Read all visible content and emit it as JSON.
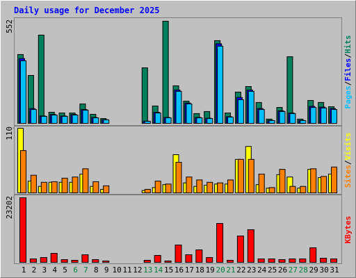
{
  "title": "Daily usage for December 2025",
  "separator": "/",
  "chart_data": [
    {
      "type": "bar",
      "ylim": [
        0,
        552
      ],
      "yticks": [
        552
      ],
      "series": [
        {
          "name": "Hits",
          "color": "#00805c",
          "values": [
            372,
            259,
            477,
            60,
            56,
            56,
            105,
            49,
            26,
            0,
            0,
            0,
            300,
            94,
            552,
            203,
            120,
            53,
            64,
            447,
            56,
            169,
            199,
            113,
            23,
            86,
            360,
            23,
            124,
            113,
            90
          ]
        },
        {
          "name": "Files",
          "color": "#0000ff",
          "values": [
            350,
            80,
            40,
            48,
            40,
            48,
            75,
            32,
            20,
            0,
            0,
            0,
            12,
            60,
            32,
            180,
            110,
            32,
            28,
            430,
            36,
            140,
            180,
            80,
            16,
            68,
            56,
            16,
            92,
            88,
            80
          ]
        },
        {
          "name": "Pages",
          "color": "#00c0ff",
          "values": [
            338,
            75,
            38,
            45,
            38,
            45,
            71,
            30,
            19,
            0,
            0,
            0,
            11,
            56,
            30,
            173,
            105,
            30,
            26,
            417,
            34,
            128,
            173,
            75,
            15,
            64,
            53,
            15,
            86,
            83,
            75
          ]
        }
      ]
    },
    {
      "type": "bar",
      "ylim": [
        0,
        110
      ],
      "yticks": [
        110
      ],
      "series": [
        {
          "name": "Visits",
          "color": "#ffff00",
          "values": [
            110,
            20,
            11,
            18,
            18,
            18,
            32,
            11,
            6,
            0,
            0,
            0,
            4,
            9,
            14,
            65,
            17,
            11,
            13,
            15,
            15,
            57,
            79,
            14,
            8,
            31,
            27,
            8,
            40,
            26,
            32
          ]
        },
        {
          "name": "Sites",
          "color": "#ff8000",
          "values": [
            72,
            30,
            18,
            19,
            25,
            27,
            41,
            19,
            12,
            0,
            0,
            0,
            6,
            20,
            15,
            52,
            27,
            22,
            18,
            17,
            22,
            57,
            57,
            32,
            9,
            40,
            11,
            11,
            41,
            28,
            44
          ]
        }
      ]
    },
    {
      "type": "bar",
      "ylim": [
        0,
        23202
      ],
      "yticks": [
        23202
      ],
      "categories": [
        "1",
        "2",
        "3",
        "4",
        "5",
        "6",
        "7",
        "8",
        "9",
        "10",
        "11",
        "12",
        "13",
        "14",
        "15",
        "16",
        "17",
        "18",
        "19",
        "20",
        "21",
        "22",
        "23",
        "24",
        "25",
        "26",
        "27",
        "28",
        "29",
        "30",
        "31"
      ],
      "category_colors": [
        "#000000",
        "#000000",
        "#000000",
        "#000000",
        "#000000",
        "#008040",
        "#008040",
        "#000000",
        "#000000",
        "#000000",
        "#000000",
        "#000000",
        "#008040",
        "#008040",
        "#000000",
        "#000000",
        "#000000",
        "#000000",
        "#000000",
        "#008040",
        "#008040",
        "#000000",
        "#000000",
        "#000000",
        "#000000",
        "#000000",
        "#008040",
        "#008040",
        "#000000",
        "#000000",
        "#000000"
      ],
      "series": [
        {
          "name": "KBytes",
          "color": "#ff0000",
          "values": [
            23202,
            1250,
            1750,
            3240,
            1000,
            750,
            2740,
            1000,
            500,
            0,
            0,
            0,
            750,
            2500,
            500,
            6240,
            2740,
            4490,
            1750,
            13970,
            750,
            9480,
            11730,
            1250,
            1250,
            1000,
            1250,
            1250,
            5240,
            1500,
            1250
          ]
        }
      ]
    }
  ]
}
